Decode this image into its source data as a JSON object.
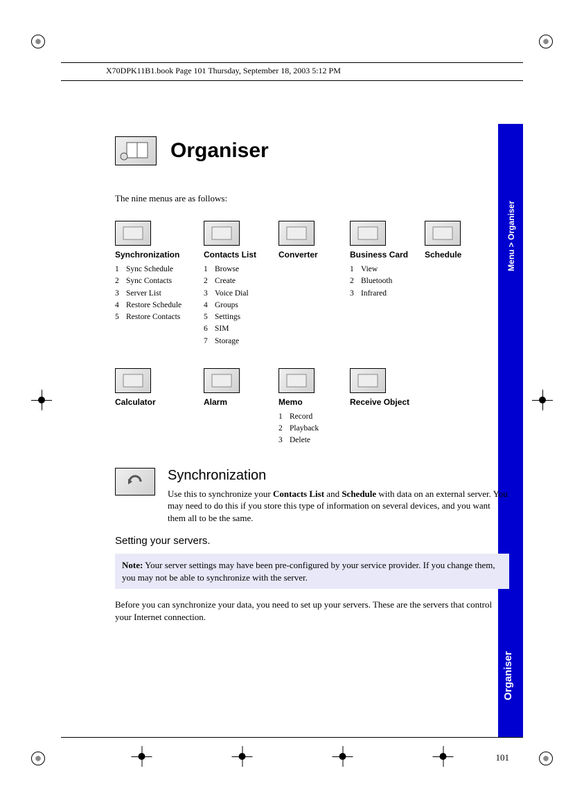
{
  "header": "X70DPK11B1.book  Page 101  Thursday, September 18, 2003  5:12 PM",
  "sidebar": {
    "breadcrumb": "Menu > Organiser",
    "section": "Organiser"
  },
  "title": "Organiser",
  "intro": "The nine menus are as follows:",
  "menus_row1": [
    {
      "title": "Synchronization",
      "items": [
        "Sync Schedule",
        "Sync Contacts",
        "Server List",
        "Restore Schedule",
        "Restore Contacts"
      ]
    },
    {
      "title": "Contacts List",
      "items": [
        "Browse",
        "Create",
        "Voice Dial",
        "Groups",
        "Settings",
        "SIM",
        "Storage"
      ]
    },
    {
      "title": "Converter",
      "items": []
    },
    {
      "title": "Business Card",
      "items": [
        "View",
        "Bluetooth",
        "Infrared"
      ]
    },
    {
      "title": "Schedule",
      "items": []
    }
  ],
  "menus_row2": [
    {
      "title": "Calculator",
      "items": []
    },
    {
      "title": "Alarm",
      "items": []
    },
    {
      "title": "Memo",
      "items": [
        "Record",
        "Playback",
        "Delete"
      ]
    },
    {
      "title": "Receive Object",
      "items": []
    }
  ],
  "sync": {
    "heading": "Synchronization",
    "p1a": "Use this to synchronize your ",
    "p1b": "Contacts List",
    "p1c": " and ",
    "p1d": "Schedule",
    "p1e": " with data on an external server. You may need to do this if you store this type of information on several devices, and you want them all to be the same."
  },
  "subheading": "Setting your servers.",
  "note": {
    "label": "Note:",
    "text": " Your server settings may have been pre-configured by your service provider. If you change them, you may not be able to synchronize with the server."
  },
  "body": "Before you can synchronize your data, you need to set up your servers. These are the servers that control your Internet connection.",
  "page_number": "101",
  "colors": {
    "sidebar": "#0000d0",
    "note_bg": "#e8e8f8"
  }
}
